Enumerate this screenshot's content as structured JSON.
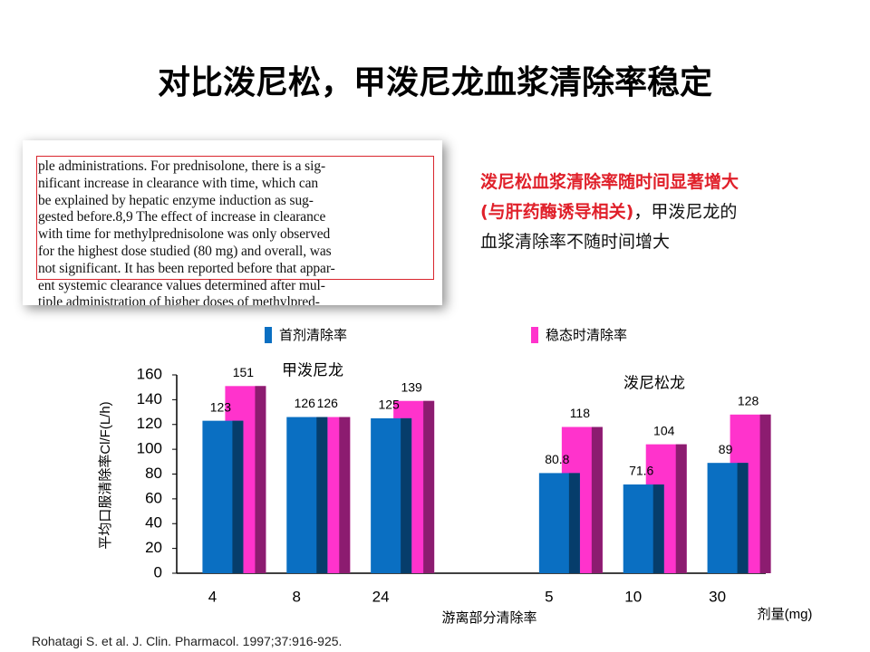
{
  "title": "对比泼尼松，甲泼尼龙血浆清除率稳定",
  "excerpt": {
    "lines": [
      "ple administrations. For prednisolone, there is a sig-",
      "nificant increase in clearance with time, which can",
      "be explained by hepatic enzyme induction as sug-",
      "gested before.8,9 The effect of increase in clearance",
      "with time for methylprednisolone was only observed",
      "for the highest dose studied (80 mg) and overall, was",
      "not significant. It has been reported before that appar-",
      "ent systemic clearance values determined after mul-",
      "tiple administration of higher doses of methylpred-"
    ]
  },
  "note": {
    "red_1": "泼尼松血浆清除率随时间显著增大",
    "red_2": "(与肝药酶诱导相关)",
    "black_1": "，甲泼尼龙的",
    "black_2": "血浆清除率不随时间增大"
  },
  "citation": "Rohatagi S. et al. J. Clin. Pharmacol. 1997;37:916-925.",
  "chart_data": {
    "type": "bar",
    "categories": [
      "4",
      "8",
      "24",
      null,
      "5",
      "10",
      "30"
    ],
    "series": [
      {
        "name": "首剂清除率",
        "color": "#0a6fc2",
        "values": [
          123,
          126,
          125,
          null,
          80.8,
          71.6,
          89
        ]
      },
      {
        "name": "稳态时清除率",
        "color": "#ff33cc",
        "values": [
          151,
          126,
          139,
          null,
          118,
          104,
          128
        ]
      }
    ],
    "ylim": [
      0,
      160
    ],
    "yticks": [
      0,
      20,
      40,
      60,
      80,
      100,
      120,
      140,
      160
    ],
    "ylabel": "平均口服清除率Cl/F(L/h)",
    "xlabel": "游离部分清除率",
    "xlabel_right": "剂量(mg)",
    "annotations": [
      "甲泼尼龙",
      "泼尼松龙"
    ]
  }
}
